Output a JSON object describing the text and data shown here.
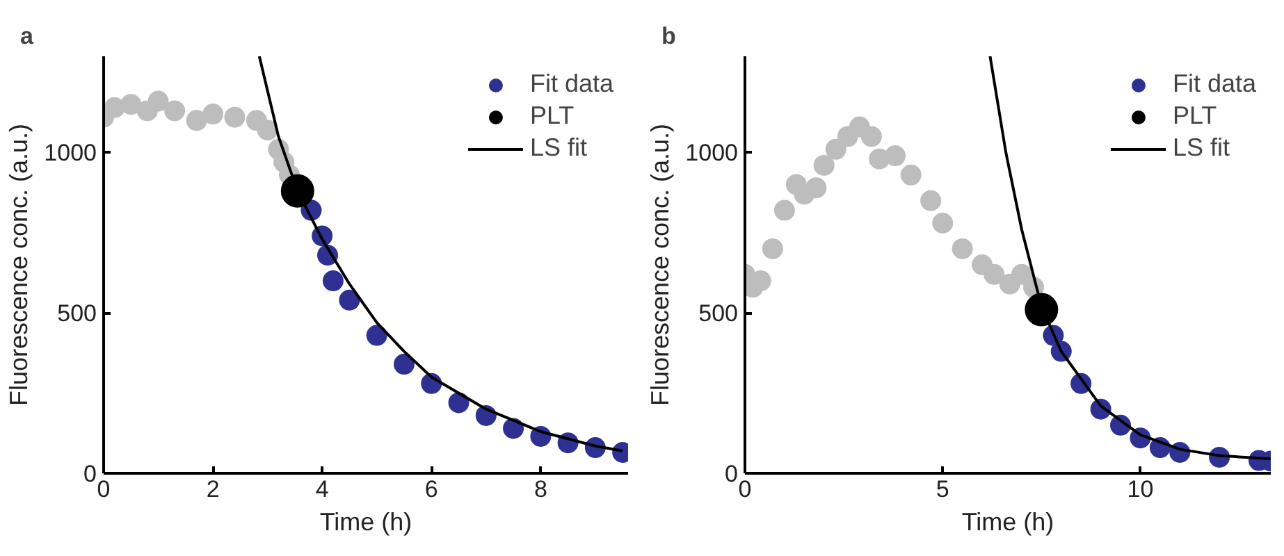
{
  "chart_data": [
    {
      "type": "scatter",
      "title": "a",
      "xlabel": "Time (h)",
      "ylabel": "Fluorescence conc. (a.u.)",
      "xlim": [
        0,
        9.6
      ],
      "ylim": [
        0,
        1300
      ],
      "xticks": [
        0,
        2,
        4,
        6,
        8
      ],
      "yticks": [
        0,
        500,
        1000
      ],
      "grid": false,
      "legend": "top right",
      "series": [
        {
          "marker": "circle",
          "color": "#bdbdbd",
          "x": [
            0,
            0.2,
            0.5,
            0.8,
            1.0,
            1.3,
            1.7,
            2.0,
            2.4,
            2.8,
            3.0,
            3.2,
            3.3,
            3.4
          ],
          "values": [
            1110,
            1140,
            1150,
            1130,
            1160,
            1130,
            1100,
            1120,
            1110,
            1100,
            1070,
            1010,
            970,
            930
          ]
        },
        {
          "name": "Fit data",
          "marker": "circle",
          "color": "#2e3192",
          "x": [
            3.8,
            4.0,
            4.1,
            4.2,
            4.5,
            5.0,
            5.5,
            6.0,
            6.5,
            7.0,
            7.5,
            8.0,
            8.5,
            9.0,
            9.5
          ],
          "values": [
            820,
            740,
            680,
            600,
            540,
            430,
            340,
            280,
            220,
            180,
            140,
            115,
            95,
            80,
            65
          ]
        },
        {
          "name": "PLT",
          "marker": "circle",
          "color": "#000000",
          "x": [
            3.55
          ],
          "values": [
            880
          ]
        },
        {
          "name": "LS fit",
          "type": "line",
          "marker": "none",
          "color": "#000000",
          "x": [
            2.85,
            3.2,
            3.55,
            4.0,
            4.5,
            5.0,
            5.5,
            6.0,
            7.0,
            8.0,
            9.0,
            9.5
          ],
          "values": [
            1300,
            1050,
            880,
            730,
            590,
            470,
            380,
            300,
            200,
            130,
            85,
            70
          ]
        }
      ]
    },
    {
      "type": "scatter",
      "title": "b",
      "xlabel": "Time (h)",
      "ylabel": "Fluorescence conc. (a.u.)",
      "xlim": [
        0,
        13.3
      ],
      "ylim": [
        0,
        1300
      ],
      "xticks": [
        0,
        5,
        10
      ],
      "yticks": [
        0,
        500,
        1000
      ],
      "grid": false,
      "legend": "top right",
      "series": [
        {
          "marker": "circle",
          "color": "#bdbdbd",
          "x": [
            0,
            0.2,
            0.4,
            0.7,
            1.0,
            1.3,
            1.5,
            1.8,
            2.0,
            2.3,
            2.6,
            2.9,
            3.2,
            3.4,
            3.8,
            4.2,
            4.7,
            5.0,
            5.5,
            6.0,
            6.3,
            6.7,
            7.0,
            7.3
          ],
          "values": [
            620,
            580,
            600,
            700,
            820,
            900,
            870,
            890,
            960,
            1010,
            1050,
            1080,
            1050,
            980,
            990,
            930,
            850,
            780,
            700,
            650,
            620,
            590,
            620,
            580
          ]
        },
        {
          "name": "Fit data",
          "marker": "circle",
          "color": "#2e3192",
          "x": [
            7.8,
            8.0,
            8.5,
            9.0,
            9.5,
            10.0,
            10.5,
            11.0,
            12.0,
            13.0,
            13.3
          ],
          "values": [
            430,
            380,
            280,
            200,
            150,
            110,
            80,
            65,
            50,
            40,
            38
          ]
        },
        {
          "name": "PLT",
          "marker": "circle",
          "color": "#000000",
          "x": [
            7.5
          ],
          "values": [
            510
          ]
        },
        {
          "name": "LS fit",
          "type": "line",
          "marker": "none",
          "color": "#000000",
          "x": [
            6.2,
            6.6,
            7.0,
            7.5,
            8.0,
            9.0,
            10.0,
            11.0,
            12.0,
            13.3
          ],
          "values": [
            1300,
            1000,
            760,
            520,
            380,
            210,
            120,
            75,
            55,
            45
          ]
        }
      ]
    }
  ]
}
